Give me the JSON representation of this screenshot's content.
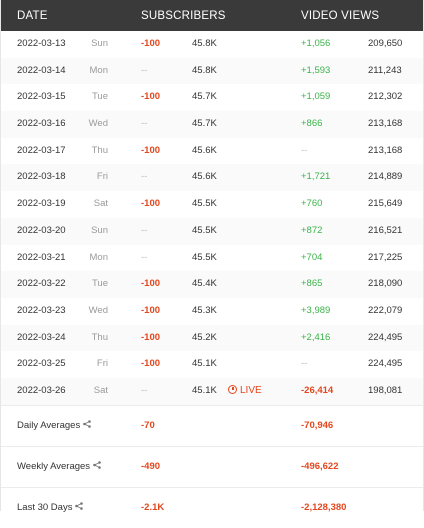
{
  "header": {
    "date_label": "DATE",
    "subscribers_label": "SUBSCRIBERS",
    "video_views_label": "VIDEO VIEWS"
  },
  "rows": [
    {
      "date": "2022-03-13",
      "day": "Sun",
      "sub_delta": "-100",
      "subs": "45.8K",
      "view_delta": "+1,056",
      "views": "209,650"
    },
    {
      "date": "2022-03-14",
      "day": "Mon",
      "sub_delta": "--",
      "subs": "45.8K",
      "view_delta": "+1,593",
      "views": "211,243"
    },
    {
      "date": "2022-03-15",
      "day": "Tue",
      "sub_delta": "-100",
      "subs": "45.7K",
      "view_delta": "+1,059",
      "views": "212,302"
    },
    {
      "date": "2022-03-16",
      "day": "Wed",
      "sub_delta": "--",
      "subs": "45.7K",
      "view_delta": "+866",
      "views": "213,168"
    },
    {
      "date": "2022-03-17",
      "day": "Thu",
      "sub_delta": "-100",
      "subs": "45.6K",
      "view_delta": "--",
      "views": "213,168"
    },
    {
      "date": "2022-03-18",
      "day": "Fri",
      "sub_delta": "--",
      "subs": "45.6K",
      "view_delta": "+1,721",
      "views": "214,889"
    },
    {
      "date": "2022-03-19",
      "day": "Sat",
      "sub_delta": "-100",
      "subs": "45.5K",
      "view_delta": "+760",
      "views": "215,649"
    },
    {
      "date": "2022-03-20",
      "day": "Sun",
      "sub_delta": "--",
      "subs": "45.5K",
      "view_delta": "+872",
      "views": "216,521"
    },
    {
      "date": "2022-03-21",
      "day": "Mon",
      "sub_delta": "--",
      "subs": "45.5K",
      "view_delta": "+704",
      "views": "217,225"
    },
    {
      "date": "2022-03-22",
      "day": "Tue",
      "sub_delta": "-100",
      "subs": "45.4K",
      "view_delta": "+865",
      "views": "218,090"
    },
    {
      "date": "2022-03-23",
      "day": "Wed",
      "sub_delta": "-100",
      "subs": "45.3K",
      "view_delta": "+3,989",
      "views": "222,079"
    },
    {
      "date": "2022-03-24",
      "day": "Thu",
      "sub_delta": "-100",
      "subs": "45.2K",
      "view_delta": "+2,416",
      "views": "224,495"
    },
    {
      "date": "2022-03-25",
      "day": "Fri",
      "sub_delta": "-100",
      "subs": "45.1K",
      "view_delta": "--",
      "views": "224,495"
    },
    {
      "date": "2022-03-26",
      "day": "Sat",
      "sub_delta": "--",
      "subs": "45.1K",
      "live": "LIVE",
      "view_delta": "-26,414",
      "views": "198,081"
    }
  ],
  "summary": [
    {
      "label": "Daily Averages",
      "sub": "-70",
      "views": "-70,946"
    },
    {
      "label": "Weekly Averages",
      "sub": "-490",
      "views": "-496,622"
    },
    {
      "label": "Last 30 Days",
      "sub": "-2.1K",
      "views": "-2,128,380"
    }
  ],
  "icons": {
    "share": "share-icon",
    "live": "clock-icon"
  },
  "colors": {
    "header_bg": "#3a3a3a",
    "negative": "#e4471e",
    "positive": "#3bb34a"
  }
}
